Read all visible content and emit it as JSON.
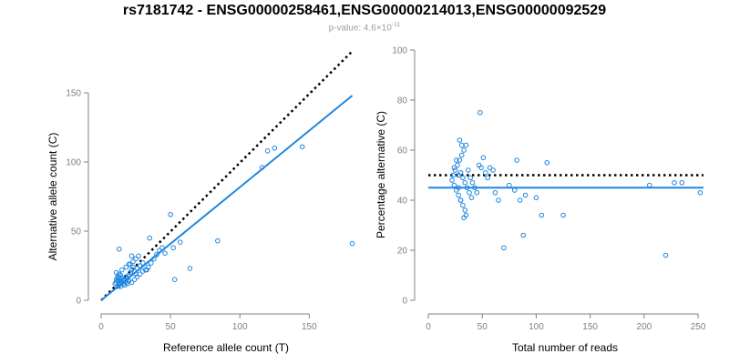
{
  "title": "rs7181742 - ENSG00000258461,ENSG00000214013,ENSG00000092529",
  "subtitle": {
    "prefix": "p-value: 4.6×10",
    "exponent": "-11"
  },
  "colors": {
    "points": "#1f86e0",
    "fit": "#1f86e0",
    "reference_line": "#000000",
    "axis": "#808080"
  },
  "chart_data": [
    {
      "type": "scatter",
      "xlabel": "Reference allele count (T)",
      "ylabel": "Alternative allele count (C)",
      "xlim": [
        0,
        180
      ],
      "ylim": [
        0,
        150
      ],
      "xticks": [
        "0",
        "50",
        "100",
        "150"
      ],
      "yticks": [
        "0",
        "50",
        "100",
        "150"
      ],
      "points": [
        [
          10,
          12
        ],
        [
          11,
          13
        ],
        [
          12,
          14
        ],
        [
          13,
          12
        ],
        [
          14,
          15
        ],
        [
          15,
          13
        ],
        [
          12,
          17
        ],
        [
          13,
          19
        ],
        [
          11,
          20
        ],
        [
          14,
          18
        ],
        [
          15,
          16
        ],
        [
          16,
          14
        ],
        [
          17,
          15
        ],
        [
          18,
          17
        ],
        [
          19,
          16
        ],
        [
          20,
          18
        ],
        [
          21,
          20
        ],
        [
          22,
          22
        ],
        [
          23,
          24
        ],
        [
          24,
          21
        ],
        [
          25,
          19
        ],
        [
          26,
          23
        ],
        [
          28,
          25
        ],
        [
          30,
          27
        ],
        [
          32,
          22
        ],
        [
          34,
          24
        ],
        [
          36,
          27
        ],
        [
          38,
          30
        ],
        [
          40,
          33
        ],
        [
          42,
          36
        ],
        [
          44,
          38
        ],
        [
          46,
          34
        ],
        [
          12,
          10
        ],
        [
          13,
          11
        ],
        [
          14,
          10
        ],
        [
          16,
          12
        ],
        [
          17,
          11
        ],
        [
          18,
          13
        ],
        [
          19,
          12
        ],
        [
          20,
          14
        ],
        [
          22,
          13
        ],
        [
          24,
          15
        ],
        [
          26,
          17
        ],
        [
          28,
          19
        ],
        [
          30,
          21
        ],
        [
          21,
          26
        ],
        [
          23,
          28
        ],
        [
          25,
          30
        ],
        [
          27,
          32
        ],
        [
          13,
          37
        ],
        [
          22,
          32
        ],
        [
          33,
          22
        ],
        [
          35,
          45
        ],
        [
          50,
          62
        ],
        [
          52,
          38
        ],
        [
          57,
          42
        ],
        [
          53,
          15
        ],
        [
          64,
          23
        ],
        [
          84,
          43
        ],
        [
          116,
          96
        ],
        [
          120,
          108
        ],
        [
          125,
          110
        ],
        [
          145,
          111
        ],
        [
          181,
          41
        ],
        [
          15,
          22
        ],
        [
          18,
          24
        ],
        [
          20,
          26
        ],
        [
          12,
          16
        ],
        [
          11,
          15
        ],
        [
          13,
          16
        ]
      ],
      "fit_line": {
        "from": [
          0,
          0
        ],
        "to": [
          181,
          148
        ]
      },
      "reference_line": {
        "from": [
          0,
          0
        ],
        "to": [
          181,
          180
        ]
      }
    },
    {
      "type": "scatter",
      "xlabel": "Total number of reads",
      "ylabel": "Percentage alternative (C)",
      "xlim": [
        0,
        255
      ],
      "ylim": [
        0,
        100
      ],
      "xticks": [
        "0",
        "50",
        "100",
        "150",
        "200",
        "250"
      ],
      "yticks": [
        "0",
        "20",
        "40",
        "60",
        "80",
        "100"
      ],
      "points": [
        [
          22,
          48
        ],
        [
          23,
          50
        ],
        [
          24,
          46
        ],
        [
          25,
          52
        ],
        [
          26,
          44
        ],
        [
          27,
          54
        ],
        [
          28,
          42
        ],
        [
          29,
          56
        ],
        [
          30,
          40
        ],
        [
          31,
          58
        ],
        [
          32,
          38
        ],
        [
          33,
          60
        ],
        [
          34,
          36
        ],
        [
          35,
          62
        ],
        [
          28,
          50
        ],
        [
          30,
          51
        ],
        [
          32,
          49
        ],
        [
          34,
          47
        ],
        [
          36,
          45
        ],
        [
          38,
          43
        ],
        [
          40,
          41
        ],
        [
          29,
          64
        ],
        [
          31,
          62
        ],
        [
          33,
          33
        ],
        [
          35,
          34
        ],
        [
          37,
          52
        ],
        [
          39,
          49
        ],
        [
          41,
          47
        ],
        [
          43,
          45
        ],
        [
          45,
          43
        ],
        [
          47,
          54
        ],
        [
          49,
          53
        ],
        [
          51,
          57
        ],
        [
          53,
          51
        ],
        [
          55,
          49
        ],
        [
          57,
          53
        ],
        [
          60,
          52
        ],
        [
          62,
          43
        ],
        [
          65,
          40
        ],
        [
          70,
          21
        ],
        [
          75,
          46
        ],
        [
          80,
          44
        ],
        [
          82,
          56
        ],
        [
          85,
          40
        ],
        [
          88,
          26
        ],
        [
          90,
          42
        ],
        [
          100,
          41
        ],
        [
          105,
          34
        ],
        [
          110,
          55
        ],
        [
          125,
          34
        ],
        [
          205,
          46
        ],
        [
          220,
          18
        ],
        [
          228,
          47
        ],
        [
          235,
          47
        ],
        [
          252,
          43
        ],
        [
          24,
          53
        ],
        [
          26,
          56
        ],
        [
          28,
          45
        ],
        [
          30,
          40
        ],
        [
          48,
          75
        ]
      ],
      "fit_line": {
        "from": [
          0,
          45
        ],
        "to": [
          255,
          45
        ]
      },
      "reference_line": {
        "from": [
          0,
          50
        ],
        "to": [
          255,
          50
        ]
      }
    }
  ]
}
